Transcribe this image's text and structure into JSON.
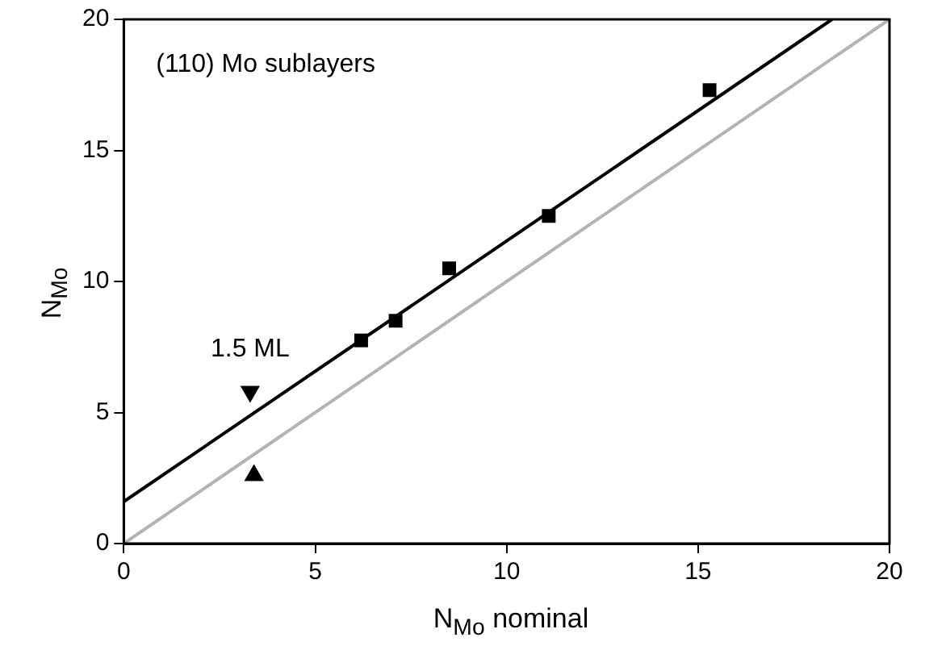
{
  "chart_data": {
    "type": "scatter",
    "xlabel": "N$_{Mo}$ nominal",
    "ylabel": "N$_{Mo}$",
    "xlim": [
      0,
      20
    ],
    "xticks": [
      0,
      5,
      10,
      15,
      20
    ],
    "ylim": [
      0,
      20
    ],
    "yticks": [
      0,
      5,
      10,
      15,
      20
    ],
    "grid": false,
    "legend": false,
    "annotations": [
      "(110) Mo sublayers",
      "1.5 ML"
    ],
    "series": [
      {
        "color": "#000000",
        "marker": "square",
        "x": [
          6.2,
          7.1,
          8.5,
          11.1,
          15.3
        ],
        "values": [
          7.75,
          8.5,
          10.5,
          12.5,
          17.3
        ]
      },
      {
        "type": "line",
        "color": "#000000",
        "marker": "none",
        "x": [
          0,
          18.5
        ],
        "values": [
          1.6,
          20
        ]
      },
      {
        "type": "line",
        "color": "#b3b3b3",
        "marker": "none",
        "x": [
          0,
          20
        ],
        "values": [
          0,
          20
        ]
      },
      {
        "color": "#000000",
        "marker": "triangle",
        "x": [
          3.3
        ],
        "values": [
          5.8
        ]
      },
      {
        "color": "#000000",
        "marker": "triangle",
        "x": [
          3.4
        ],
        "values": [
          2.6
        ]
      }
    ]
  }
}
